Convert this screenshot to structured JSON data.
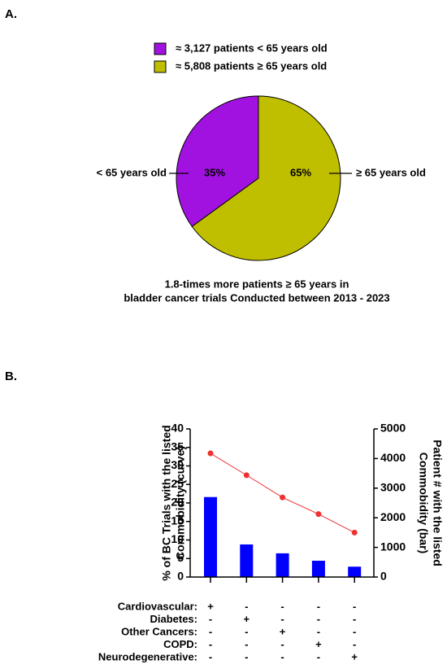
{
  "chart_data": [
    {
      "type": "pie",
      "panel_label": "A.",
      "legend": [
        "≈ 3,127 patients < 65 years old",
        "≈ 5,808 patients ≥ 65 years old"
      ],
      "categories": [
        "< 65 years old",
        "≥ 65 years old"
      ],
      "values": [
        35,
        65
      ],
      "value_labels": [
        "35%",
        "65%"
      ],
      "colors": [
        "#a112e0",
        "#bfbf00"
      ],
      "caption": [
        "1.8-times more patients ≥ 65 years in",
        "bladder cancer trials Conducted between 2013 - 2023"
      ]
    },
    {
      "type": "bar_line",
      "panel_label": "B.",
      "categories": [
        null,
        null,
        null,
        null,
        null
      ],
      "ylabel": [
        "% of BC Trials with the listed",
        "Commobidity (curve)"
      ],
      "y2label": [
        "Patient # with the listed",
        "Commobidity (bar)"
      ],
      "ylim": [
        0,
        40
      ],
      "yticks": [
        0,
        5,
        10,
        15,
        20,
        25,
        30,
        35,
        40
      ],
      "ycolor": "#ff0000",
      "y2lim": [
        0,
        5000
      ],
      "y2ticks": [
        0,
        1000,
        2000,
        3000,
        4000,
        5000
      ],
      "y2color": "#0000ff",
      "series": [
        {
          "kind": "line",
          "axis": "y",
          "color": "#ee3030",
          "values": [
            33.4,
            27.5,
            21.5,
            17,
            12
          ]
        },
        {
          "kind": "bar",
          "axis": "y2",
          "color": "#0000ff",
          "values": [
            2700,
            1100,
            800,
            550,
            350
          ]
        }
      ],
      "matrix": [
        {
          "label": "Cardiovascular:",
          "cells": [
            "+",
            "-",
            "-",
            "-",
            "-"
          ]
        },
        {
          "label": "Diabetes:",
          "cells": [
            "-",
            "+",
            "-",
            "-",
            "-"
          ]
        },
        {
          "label": "Other Cancers:",
          "cells": [
            "-",
            "-",
            "+",
            "-",
            "-"
          ]
        },
        {
          "label": "COPD:",
          "cells": [
            "-",
            "-",
            "-",
            "+",
            "-"
          ]
        },
        {
          "label": "Neurodegenerative:",
          "cells": [
            "-",
            "-",
            "-",
            "-",
            "+"
          ]
        }
      ]
    }
  ]
}
